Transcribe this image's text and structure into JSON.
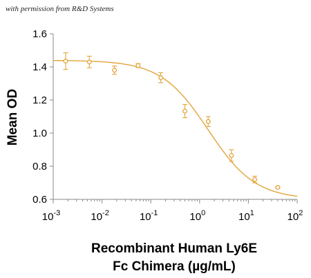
{
  "note": "with permission from R&D Systems",
  "chart_data": {
    "type": "scatter",
    "title": "",
    "xlabel_lines": [
      "Recombinant Human Ly6E",
      "Fc Chimera (µg/mL)"
    ],
    "ylabel": "Mean OD",
    "x_scale": "log",
    "xlim": [
      0.001,
      100
    ],
    "ylim": [
      0.6,
      1.6
    ],
    "x_ticks": [
      {
        "base": "10",
        "exp": "-3",
        "value": 0.001
      },
      {
        "base": "10",
        "exp": "-2",
        "value": 0.01
      },
      {
        "base": "10",
        "exp": "-1",
        "value": 0.1
      },
      {
        "base": "10",
        "exp": "0",
        "value": 1
      },
      {
        "base": "10",
        "exp": "1",
        "value": 10
      },
      {
        "base": "10",
        "exp": "2",
        "value": 100
      }
    ],
    "y_ticks": [
      "0.6",
      "0.8",
      "1.0",
      "1.2",
      "1.4",
      "1.6"
    ],
    "grid": false,
    "color": "#E3A43A",
    "points": [
      {
        "x": 0.0018,
        "y": 1.435,
        "err": 0.05
      },
      {
        "x": 0.0055,
        "y": 1.43,
        "err": 0.035
      },
      {
        "x": 0.018,
        "y": 1.38,
        "err": 0.025
      },
      {
        "x": 0.055,
        "y": 1.408,
        "err": 0.012
      },
      {
        "x": 0.16,
        "y": 1.335,
        "err": 0.03
      },
      {
        "x": 0.5,
        "y": 1.133,
        "err": 0.04
      },
      {
        "x": 1.5,
        "y": 1.07,
        "err": 0.03
      },
      {
        "x": 4.5,
        "y": 0.865,
        "err": 0.035
      },
      {
        "x": 13.5,
        "y": 0.72,
        "err": 0.02
      },
      {
        "x": 40,
        "y": 0.672,
        "err": 0.005
      }
    ],
    "fit": {
      "top": 1.44,
      "bottom": 0.6,
      "ec50": 1.5,
      "hill": 0.9
    }
  }
}
